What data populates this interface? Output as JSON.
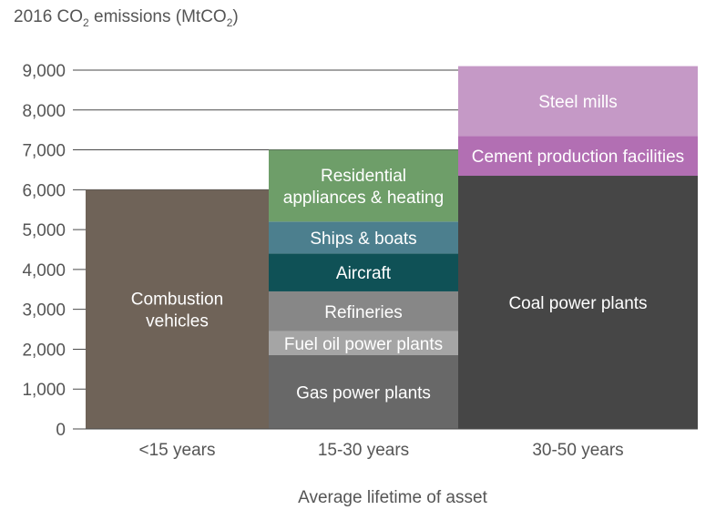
{
  "chart_data": {
    "type": "bar",
    "title_main": "2016 CO",
    "title_sub": "2",
    "title_unit_open": " emissions (MtCO",
    "title_unit_sub": "2",
    "title_unit_close": ")",
    "xlabel": "Average lifetime of asset",
    "ylim": [
      0,
      9000
    ],
    "yticks": [
      "0",
      "1,000",
      "2,000",
      "3,000",
      "4,000",
      "5,000",
      "6,000",
      "7,000",
      "8,000",
      "9,000"
    ],
    "grid": true,
    "categories": [
      "<15 years",
      "15-30 years",
      "30-50 years"
    ],
    "stacks": [
      {
        "category": "<15 years",
        "segments": [
          {
            "label": [
              "Combustion",
              "vehicles"
            ],
            "from": 0,
            "to": 6000,
            "color": "#6f6358",
            "text_color": "#ffffff"
          }
        ]
      },
      {
        "category": "15-30 years",
        "segments": [
          {
            "label": [
              "Gas power plants"
            ],
            "from": 0,
            "to": 1850,
            "color": "#686868",
            "text_color": "#ffffff"
          },
          {
            "label": [
              "Fuel oil power plants"
            ],
            "from": 1850,
            "to": 2450,
            "color": "#a5a5a5",
            "text_color": "#ffffff"
          },
          {
            "label": [
              "Refineries"
            ],
            "from": 2450,
            "to": 3450,
            "color": "#878787",
            "text_color": "#ffffff"
          },
          {
            "label": [
              "Aircraft"
            ],
            "from": 3450,
            "to": 4400,
            "color": "#0f5156",
            "text_color": "#ffffff"
          },
          {
            "label": [
              "Ships & boats"
            ],
            "from": 4400,
            "to": 5200,
            "color": "#4c7f8e",
            "text_color": "#ffffff"
          },
          {
            "label": [
              "Residential",
              "appliances & heating"
            ],
            "from": 5200,
            "to": 7000,
            "color": "#6e9e69",
            "text_color": "#ffffff"
          }
        ]
      },
      {
        "category": "30-50 years",
        "segments": [
          {
            "label": [
              "Coal power plants"
            ],
            "from": 0,
            "to": 6350,
            "color": "#464646",
            "text_color": "#ffffff"
          },
          {
            "label": [
              "Cement production facilities"
            ],
            "from": 6350,
            "to": 7350,
            "color": "#b26fb3",
            "text_color": "#ffffff"
          },
          {
            "label": [
              "Steel mills"
            ],
            "from": 7350,
            "to": 9100,
            "color": "#c599c6",
            "text_color": "#ffffff"
          }
        ]
      }
    ]
  }
}
